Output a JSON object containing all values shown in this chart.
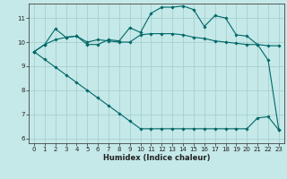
{
  "xlabel": "Humidex (Indice chaleur)",
  "bg_color": "#c5e8e8",
  "grid_color": "#a8d0d0",
  "line_color": "#006868",
  "xlim": [
    -0.5,
    23.5
  ],
  "ylim": [
    5.8,
    11.6
  ],
  "xticks": [
    0,
    1,
    2,
    3,
    4,
    5,
    6,
    7,
    8,
    9,
    10,
    11,
    12,
    13,
    14,
    15,
    16,
    17,
    18,
    19,
    20,
    21,
    22,
    23
  ],
  "yticks": [
    6,
    7,
    8,
    9,
    10,
    11
  ],
  "line1_x": [
    0,
    1,
    2,
    3,
    4,
    5,
    6,
    7,
    8,
    9,
    10,
    11,
    12,
    13,
    14,
    15,
    16,
    17,
    18,
    19,
    20,
    21,
    22,
    23
  ],
  "line1_y": [
    9.6,
    9.9,
    10.1,
    10.2,
    10.25,
    10.0,
    10.1,
    10.05,
    10.0,
    10.0,
    10.3,
    10.35,
    10.35,
    10.35,
    10.3,
    10.2,
    10.15,
    10.05,
    10.0,
    9.95,
    9.9,
    9.9,
    9.85,
    9.85
  ],
  "line2_x": [
    0,
    1,
    2,
    3,
    4,
    5,
    6,
    7,
    8,
    9,
    10,
    11,
    12,
    13,
    14,
    15,
    16,
    17,
    18,
    19,
    20,
    21,
    22,
    23
  ],
  "line2_y": [
    9.6,
    9.9,
    10.55,
    10.2,
    10.25,
    9.9,
    9.9,
    10.1,
    10.05,
    10.6,
    10.4,
    11.2,
    11.45,
    11.45,
    11.5,
    11.35,
    10.65,
    11.1,
    11.0,
    10.3,
    10.25,
    9.9,
    9.25,
    6.35
  ],
  "line3_x": [
    0,
    1,
    2,
    3,
    4,
    5,
    6,
    7,
    8,
    9,
    10,
    11,
    12,
    13,
    14,
    15,
    16,
    17,
    18,
    19,
    20,
    21,
    22,
    23
  ],
  "line3_y": [
    9.6,
    9.28,
    8.96,
    8.64,
    8.32,
    8.0,
    7.68,
    7.36,
    7.04,
    6.72,
    6.4,
    6.4,
    6.4,
    6.4,
    6.4,
    6.4,
    6.4,
    6.4,
    6.4,
    6.4,
    6.4,
    6.85,
    6.9,
    6.35
  ]
}
